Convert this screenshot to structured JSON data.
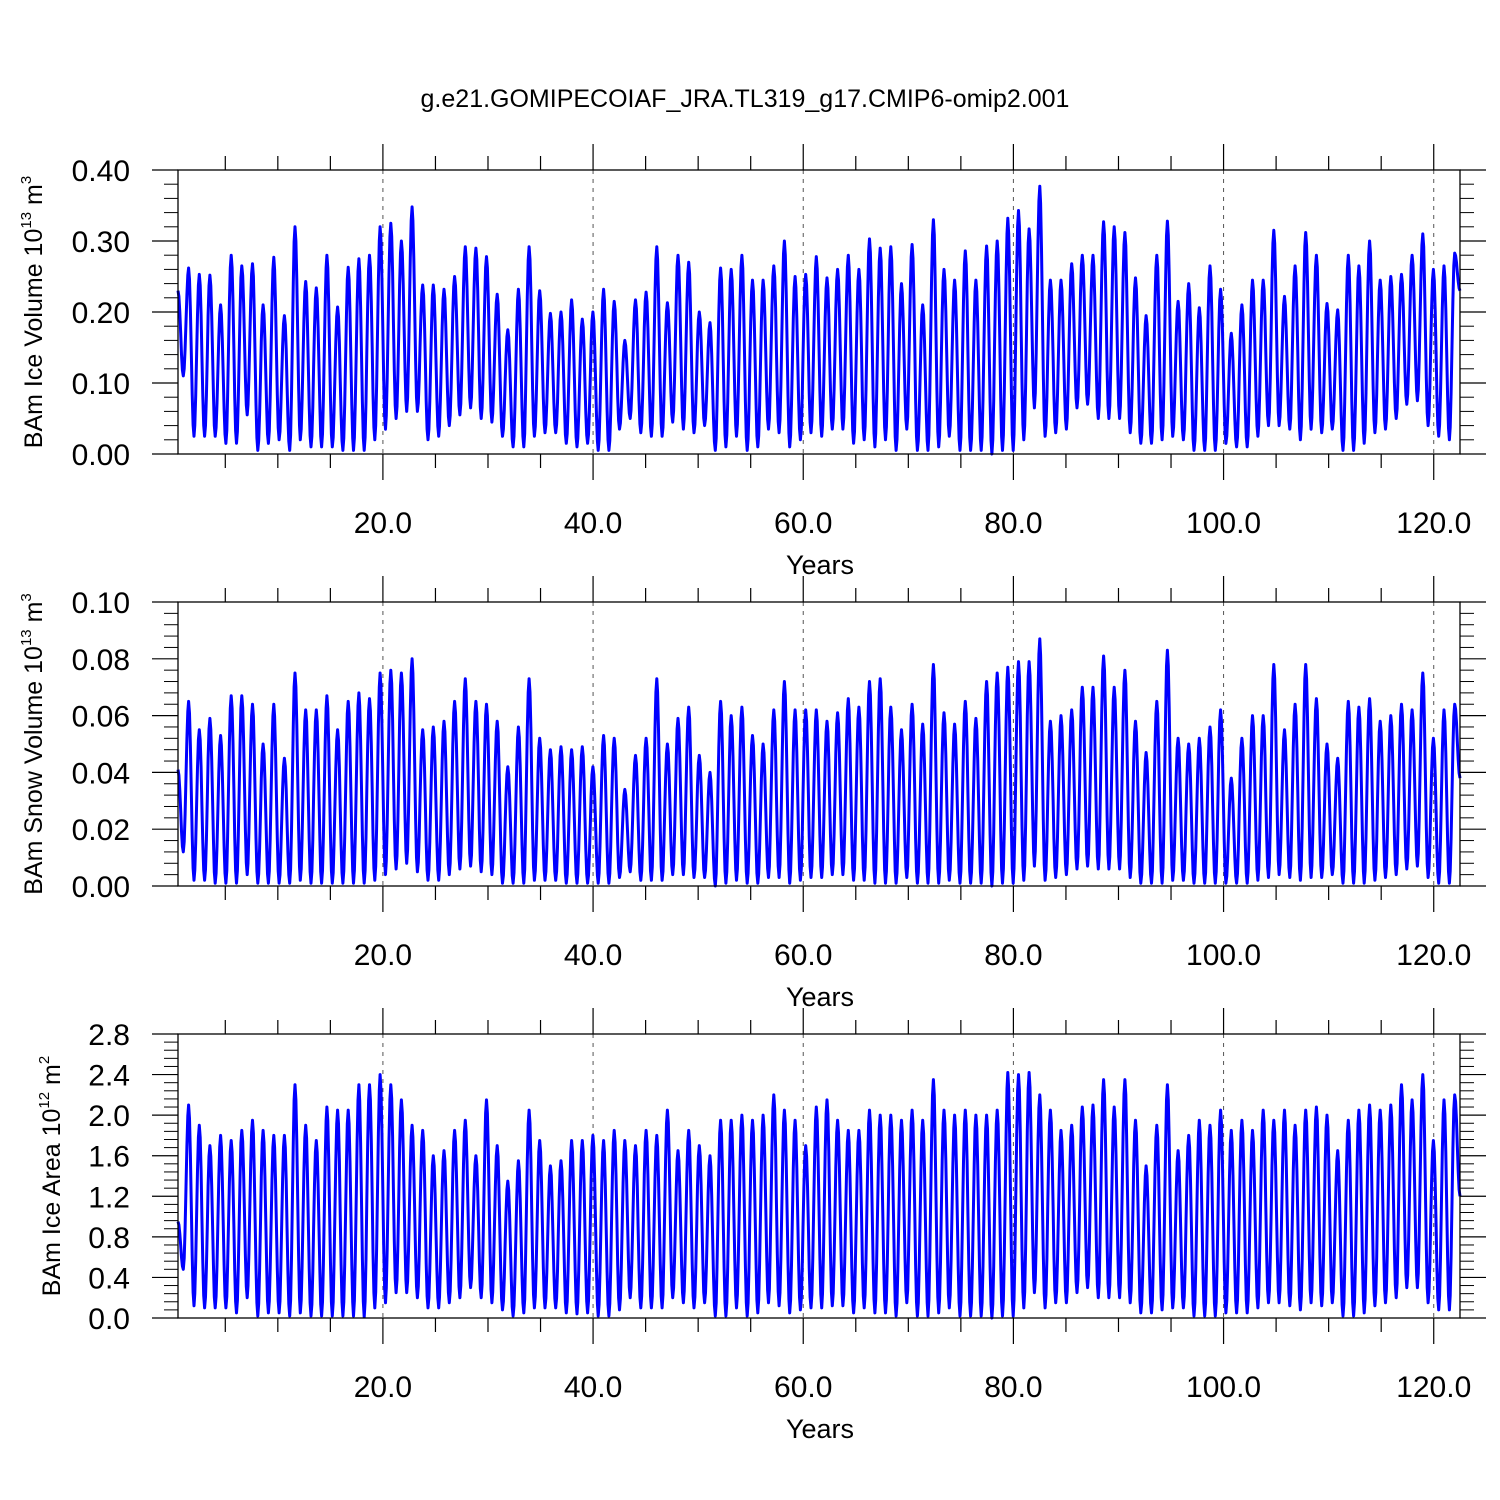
{
  "figure_title": "g.e21.GOMIPECOIAF_JRA.TL319_g17.CMIP6-omip2.001",
  "colors": {
    "series": "#0000ff",
    "axes": "#000000",
    "grid": "#555555"
  },
  "chart_data": [
    {
      "type": "line",
      "xlabel": "Years",
      "ylabel": {
        "text": "BAm Ice Volume 10",
        "exp": "13",
        "unit": " m",
        "unit_exp": "3"
      },
      "xlim": [
        0.5,
        122.5
      ],
      "ylim": [
        0.0,
        0.4
      ],
      "x_ticks": [
        "20.0",
        "40.0",
        "60.0",
        "80.0",
        "100.0",
        "120.0"
      ],
      "y_ticks": [
        "0.00",
        "0.10",
        "0.20",
        "0.30",
        "0.40"
      ],
      "grid": "dashed vertical at labeled x ticks",
      "series": [
        {
          "start_year": 0.5,
          "start_value": 0.23,
          "end_value": 0.23,
          "maxima": [
            0.262,
            0.253,
            0.252,
            0.21,
            0.28,
            0.265,
            0.268,
            0.21,
            0.277,
            0.195,
            0.32,
            0.243,
            0.234,
            0.28,
            0.207,
            0.263,
            0.275,
            0.28,
            0.32,
            0.325,
            0.3,
            0.348,
            0.238,
            0.238,
            0.232,
            0.25,
            0.292,
            0.29,
            0.278,
            0.225,
            0.175,
            0.232,
            0.292,
            0.23,
            0.198,
            0.2,
            0.217,
            0.19,
            0.2,
            0.232,
            0.215,
            0.16,
            0.217,
            0.228,
            0.292,
            0.213,
            0.28,
            0.27,
            0.2,
            0.185,
            0.262,
            0.26,
            0.28,
            0.245,
            0.245,
            0.265,
            0.3,
            0.25,
            0.253,
            0.278,
            0.248,
            0.26,
            0.28,
            0.26,
            0.303,
            0.29,
            0.292,
            0.24,
            0.295,
            0.21,
            0.33,
            0.26,
            0.245,
            0.286,
            0.245,
            0.293,
            0.3,
            0.332,
            0.343,
            0.317,
            0.377,
            0.245,
            0.245,
            0.268,
            0.28,
            0.28,
            0.327,
            0.32,
            0.312,
            0.248,
            0.195,
            0.28,
            0.328,
            0.215,
            0.24,
            0.206,
            0.265,
            0.232,
            0.17,
            0.21,
            0.245,
            0.245,
            0.315,
            0.222,
            0.265,
            0.312,
            0.28,
            0.212,
            0.203,
            0.28,
            0.265,
            0.3,
            0.245,
            0.25,
            0.253,
            0.28,
            0.31,
            0.26,
            0.265,
            0.283
          ],
          "minima": [
            0.11,
            0.025,
            0.025,
            0.025,
            0.015,
            0.015,
            0.055,
            0.005,
            0.015,
            0.02,
            0.005,
            0.02,
            0.01,
            0.01,
            0.01,
            0.005,
            0.005,
            0.005,
            0.02,
            0.035,
            0.05,
            0.06,
            0.06,
            0.02,
            0.025,
            0.04,
            0.055,
            0.065,
            0.05,
            0.045,
            0.025,
            0.01,
            0.01,
            0.025,
            0.03,
            0.03,
            0.015,
            0.01,
            0.015,
            0.005,
            0.005,
            0.035,
            0.05,
            0.03,
            0.025,
            0.025,
            0.045,
            0.035,
            0.03,
            0.04,
            0.005,
            0.01,
            0.025,
            0.005,
            0.01,
            0.035,
            0.03,
            0.01,
            0.02,
            0.03,
            0.025,
            0.035,
            0.035,
            0.015,
            0.02,
            0.01,
            0.02,
            0.005,
            0.035,
            0.005,
            0.005,
            0.01,
            0.025,
            0.005,
            0.005,
            0.005,
            0.0,
            0.005,
            0.005,
            0.02,
            0.065,
            0.025,
            0.03,
            0.035,
            0.065,
            0.07,
            0.05,
            0.05,
            0.05,
            0.03,
            0.015,
            0.015,
            0.02,
            0.025,
            0.02,
            0.005,
            0.005,
            0.005,
            0.015,
            0.01,
            0.01,
            0.025,
            0.04,
            0.04,
            0.035,
            0.02,
            0.035,
            0.03,
            0.035,
            0.005,
            0.005,
            0.015,
            0.03,
            0.035,
            0.05,
            0.07,
            0.075,
            0.04,
            0.025,
            0.02,
            0.05
          ]
        }
      ]
    },
    {
      "type": "line",
      "xlabel": "Years",
      "ylabel": {
        "text": "BAm Snow Volume 10",
        "exp": "13",
        "unit": " m",
        "unit_exp": "3"
      },
      "xlim": [
        0.5,
        122.5
      ],
      "ylim": [
        0.0,
        0.1
      ],
      "x_ticks": [
        "20.0",
        "40.0",
        "60.0",
        "80.0",
        "100.0",
        "120.0"
      ],
      "y_ticks": [
        "0.00",
        "0.02",
        "0.04",
        "0.06",
        "0.08",
        "0.10"
      ],
      "grid": "dashed vertical at labeled x ticks",
      "series": [
        {
          "start_year": 0.5,
          "start_value": 0.041,
          "end_value": 0.038,
          "maxima": [
            0.065,
            0.055,
            0.059,
            0.053,
            0.067,
            0.067,
            0.064,
            0.05,
            0.064,
            0.045,
            0.075,
            0.062,
            0.062,
            0.067,
            0.055,
            0.065,
            0.068,
            0.066,
            0.075,
            0.076,
            0.075,
            0.08,
            0.055,
            0.056,
            0.058,
            0.065,
            0.073,
            0.065,
            0.064,
            0.058,
            0.042,
            0.056,
            0.073,
            0.052,
            0.048,
            0.049,
            0.048,
            0.049,
            0.042,
            0.053,
            0.052,
            0.034,
            0.046,
            0.052,
            0.073,
            0.05,
            0.059,
            0.063,
            0.046,
            0.04,
            0.065,
            0.06,
            0.063,
            0.053,
            0.05,
            0.062,
            0.072,
            0.062,
            0.062,
            0.062,
            0.058,
            0.061,
            0.066,
            0.063,
            0.072,
            0.073,
            0.063,
            0.055,
            0.064,
            0.057,
            0.078,
            0.061,
            0.057,
            0.065,
            0.059,
            0.072,
            0.075,
            0.077,
            0.079,
            0.079,
            0.087,
            0.058,
            0.06,
            0.062,
            0.07,
            0.07,
            0.081,
            0.07,
            0.076,
            0.058,
            0.047,
            0.065,
            0.083,
            0.052,
            0.05,
            0.052,
            0.056,
            0.062,
            0.038,
            0.052,
            0.06,
            0.06,
            0.078,
            0.055,
            0.064,
            0.078,
            0.066,
            0.05,
            0.045,
            0.065,
            0.063,
            0.066,
            0.058,
            0.06,
            0.064,
            0.062,
            0.075,
            0.052,
            0.062,
            0.064
          ],
          "minima": [
            0.012,
            0.002,
            0.002,
            0.001,
            0.001,
            0.001,
            0.004,
            0.001,
            0.001,
            0.001,
            0.001,
            0.002,
            0.001,
            0.001,
            0.001,
            0.001,
            0.001,
            0.001,
            0.002,
            0.004,
            0.006,
            0.008,
            0.005,
            0.002,
            0.002,
            0.004,
            0.006,
            0.007,
            0.005,
            0.004,
            0.001,
            0.001,
            0.001,
            0.002,
            0.002,
            0.002,
            0.001,
            0.001,
            0.001,
            0.001,
            0.001,
            0.003,
            0.005,
            0.002,
            0.002,
            0.002,
            0.004,
            0.004,
            0.003,
            0.003,
            0.0,
            0.001,
            0.002,
            0.001,
            0.001,
            0.003,
            0.003,
            0.001,
            0.002,
            0.003,
            0.003,
            0.004,
            0.004,
            0.002,
            0.002,
            0.001,
            0.001,
            0.001,
            0.003,
            0.001,
            0.001,
            0.001,
            0.002,
            0.001,
            0.001,
            0.001,
            0.0,
            0.001,
            0.001,
            0.002,
            0.007,
            0.002,
            0.003,
            0.004,
            0.006,
            0.007,
            0.006,
            0.006,
            0.006,
            0.003,
            0.001,
            0.001,
            0.001,
            0.002,
            0.002,
            0.001,
            0.001,
            0.001,
            0.001,
            0.001,
            0.001,
            0.002,
            0.003,
            0.004,
            0.003,
            0.002,
            0.003,
            0.003,
            0.004,
            0.001,
            0.001,
            0.001,
            0.002,
            0.003,
            0.004,
            0.006,
            0.007,
            0.003,
            0.001,
            0.001,
            0.005
          ]
        }
      ]
    },
    {
      "type": "line",
      "xlabel": "Years",
      "ylabel": {
        "text": "BAm Ice Area 10",
        "exp": "12",
        "unit": " m",
        "unit_exp": "2"
      },
      "xlim": [
        0.5,
        122.5
      ],
      "ylim": [
        0.0,
        2.8
      ],
      "x_ticks": [
        "20.0",
        "40.0",
        "60.0",
        "80.0",
        "100.0",
        "120.0"
      ],
      "y_ticks": [
        "0.0",
        "0.4",
        "0.8",
        "1.2",
        "1.6",
        "2.0",
        "2.4",
        "2.8"
      ],
      "grid": "dashed vertical at labeled x ticks",
      "series": [
        {
          "start_year": 0.5,
          "start_value": 0.95,
          "end_value": 1.2,
          "maxima": [
            2.1,
            1.9,
            1.7,
            1.8,
            1.75,
            1.85,
            1.95,
            1.85,
            1.8,
            1.8,
            2.3,
            1.9,
            1.75,
            2.08,
            2.05,
            2.05,
            2.3,
            2.3,
            2.4,
            2.3,
            2.15,
            1.9,
            1.85,
            1.6,
            1.65,
            1.85,
            1.95,
            1.6,
            2.15,
            1.7,
            1.35,
            1.55,
            2.05,
            1.75,
            1.5,
            1.55,
            1.75,
            1.75,
            1.8,
            1.75,
            1.85,
            1.75,
            1.7,
            1.85,
            1.8,
            2.05,
            1.65,
            1.85,
            1.7,
            1.6,
            1.95,
            1.95,
            2.0,
            1.95,
            2.0,
            2.2,
            2.05,
            1.95,
            1.7,
            2.08,
            2.15,
            1.95,
            1.85,
            1.85,
            2.05,
            2.0,
            2.0,
            1.95,
            2.05,
            1.95,
            2.35,
            2.05,
            2.0,
            2.05,
            2.0,
            2.0,
            2.05,
            2.42,
            2.4,
            2.42,
            2.2,
            2.05,
            1.85,
            1.9,
            2.08,
            2.1,
            2.35,
            2.08,
            2.35,
            1.95,
            1.5,
            1.9,
            2.3,
            1.65,
            1.8,
            1.95,
            1.9,
            2.05,
            1.85,
            1.95,
            1.85,
            2.05,
            1.95,
            2.05,
            1.9,
            2.05,
            2.08,
            2.0,
            1.65,
            1.95,
            2.05,
            2.1,
            2.05,
            2.1,
            2.3,
            2.15,
            2.4,
            1.75,
            2.15,
            2.2
          ],
          "minima": [
            0.48,
            0.12,
            0.1,
            0.1,
            0.1,
            0.05,
            0.2,
            0.02,
            0.05,
            0.05,
            0.02,
            0.05,
            0.02,
            0.02,
            0.02,
            0.02,
            0.02,
            0.01,
            0.1,
            0.15,
            0.25,
            0.25,
            0.2,
            0.1,
            0.1,
            0.15,
            0.2,
            0.3,
            0.2,
            0.15,
            0.08,
            0.02,
            0.05,
            0.1,
            0.1,
            0.1,
            0.05,
            0.04,
            0.05,
            0.02,
            0.02,
            0.08,
            0.2,
            0.1,
            0.1,
            0.1,
            0.2,
            0.15,
            0.1,
            0.15,
            0.02,
            0.02,
            0.1,
            0.02,
            0.05,
            0.15,
            0.12,
            0.05,
            0.08,
            0.1,
            0.1,
            0.12,
            0.12,
            0.05,
            0.1,
            0.05,
            0.05,
            0.02,
            0.15,
            0.02,
            0.02,
            0.05,
            0.1,
            0.02,
            0.02,
            0.02,
            0.0,
            0.02,
            0.02,
            0.1,
            0.25,
            0.1,
            0.15,
            0.15,
            0.25,
            0.3,
            0.2,
            0.2,
            0.2,
            0.15,
            0.05,
            0.05,
            0.08,
            0.1,
            0.1,
            0.02,
            0.02,
            0.02,
            0.05,
            0.05,
            0.05,
            0.1,
            0.15,
            0.15,
            0.12,
            0.08,
            0.15,
            0.12,
            0.15,
            0.02,
            0.02,
            0.05,
            0.12,
            0.15,
            0.2,
            0.3,
            0.3,
            0.15,
            0.08,
            0.08,
            0.3
          ]
        }
      ]
    }
  ]
}
